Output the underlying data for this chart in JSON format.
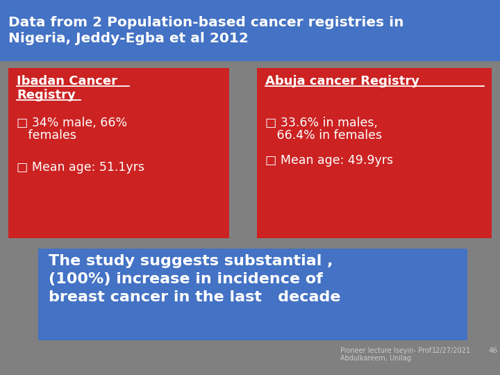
{
  "title": "Data from 2 Population-based cancer registries in\nNigeria, Jeddy-Egba et al 2012",
  "title_bg": "#4472C4",
  "title_color": "#FFFFFF",
  "slide_bg": "#808080",
  "left_box_color": "#CC2222",
  "right_box_color": "#CC2222",
  "bottom_box_color": "#4472C4",
  "left_box_title_line1": "Ibadan Cancer",
  "left_box_title_line2": "Registry",
  "right_box_title": "Abuja cancer Registry",
  "left_bullet1_line1": "□ 34% male, 66%",
  "left_bullet1_line2": "   females",
  "left_bullet2": "□ Mean age: 51.1yrs",
  "right_bullet1_line1": "□ 33.6% in males,",
  "right_bullet1_line2": "   66.4% in females",
  "right_bullet2": "□ Mean age: 49.9yrs",
  "bottom_text": "The study suggests substantial ,\n(100%) increase in incidence of\nbreast cancer in the last   decade",
  "footer_text1": "Pioneer lecture Iseyin- Prof",
  "footer_text2": "Abdulkareem, Unilag",
  "footer_date": "12/27/2021",
  "footer_page": "46",
  "text_color": "#FFFFFF"
}
